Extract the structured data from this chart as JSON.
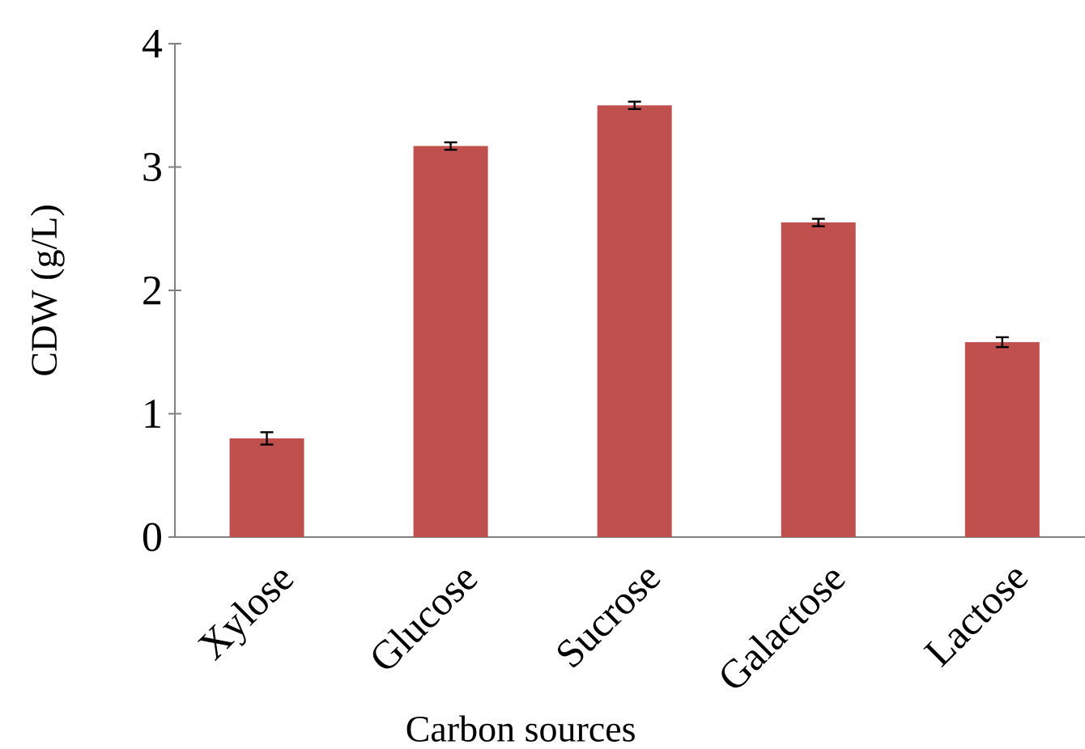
{
  "chart_data": {
    "type": "bar",
    "xlabel": "Carbon sources",
    "ylabel": "CDW (g/L)",
    "categories": [
      "Xylose",
      "Glucose",
      "Sucrose",
      "Galactose",
      "Lactose"
    ],
    "values": [
      0.8,
      3.17,
      3.5,
      2.55,
      1.58
    ],
    "errors": [
      0.05,
      0.03,
      0.03,
      0.03,
      0.04
    ],
    "color": "#c0504d",
    "ylim": [
      0,
      4
    ],
    "yticks": [
      0,
      1,
      2,
      3,
      4
    ]
  }
}
